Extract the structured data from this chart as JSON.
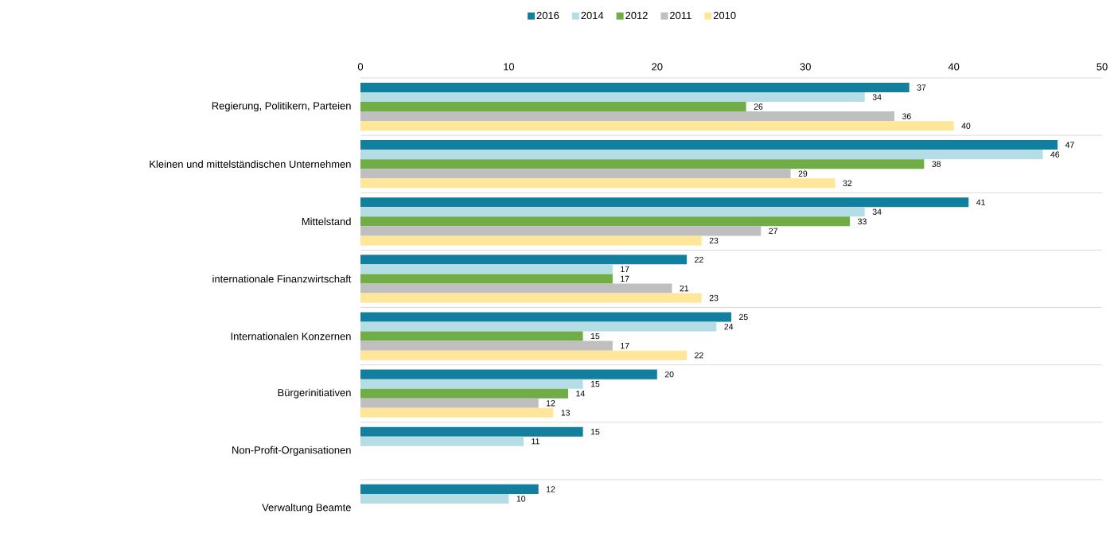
{
  "chart_data": {
    "type": "bar",
    "orientation": "horizontal",
    "categories": [
      "Regierung, Politikern, Parteien",
      "Kleinen und mittelständischen Unternehmen",
      "Mittelstand",
      "internationale Finanzwirtschaft",
      "Internationalen Konzernen",
      "Bürgerinitiativen",
      "Non-Profit-Organisationen",
      "Verwaltung Beamte"
    ],
    "series": [
      {
        "name": "2016",
        "color": "#137f9e",
        "values": [
          37,
          47,
          41,
          22,
          25,
          20,
          15,
          12
        ]
      },
      {
        "name": "2014",
        "color": "#b4dde6",
        "values": [
          34,
          46,
          34,
          17,
          24,
          15,
          11,
          10
        ]
      },
      {
        "name": "2012",
        "color": "#70ad47",
        "values": [
          26,
          38,
          33,
          17,
          15,
          14,
          null,
          null
        ]
      },
      {
        "name": "2011",
        "color": "#bfbfbf",
        "values": [
          36,
          29,
          27,
          21,
          17,
          12,
          null,
          null
        ]
      },
      {
        "name": "2010",
        "color": "#ffe699",
        "values": [
          40,
          32,
          23,
          23,
          22,
          13,
          null,
          null
        ]
      }
    ],
    "xlim": [
      0,
      50
    ],
    "xticks": [
      0,
      10,
      20,
      30,
      40,
      50
    ],
    "grid": "y",
    "legend": "top",
    "data_labels": true
  }
}
